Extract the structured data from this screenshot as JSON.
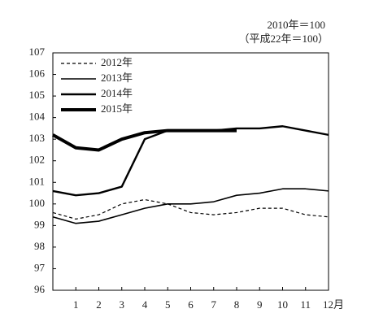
{
  "chart_data": {
    "type": "line",
    "annotations": [
      "2010年＝100",
      "（平成22年＝100）"
    ],
    "x": [
      0,
      1,
      2,
      3,
      4,
      5,
      6,
      7,
      8,
      9,
      10,
      11,
      12
    ],
    "xlim": [
      0,
      12
    ],
    "xticks": [
      1,
      2,
      3,
      4,
      5,
      6,
      7,
      8,
      9,
      10,
      11,
      {
        "value": 12,
        "label": "12月"
      }
    ],
    "ylim": [
      96,
      107
    ],
    "yticks": [
      96,
      97,
      98,
      99,
      100,
      101,
      102,
      103,
      104,
      105,
      106,
      107
    ],
    "legend": "top-left",
    "series": [
      {
        "name": "2012年",
        "color": "#000000",
        "dashed": true,
        "values": [
          99.6,
          99.3,
          99.5,
          100.0,
          100.2,
          100.0,
          99.6,
          99.5,
          99.6,
          99.8,
          99.8,
          99.5,
          99.4
        ]
      },
      {
        "name": "2013年",
        "color": "#000000",
        "values": [
          99.4,
          99.1,
          99.2,
          99.5,
          99.8,
          100.0,
          100.0,
          100.1,
          100.4,
          100.5,
          100.7,
          100.7,
          100.6
        ]
      },
      {
        "name": "2014年",
        "color": "#000000",
        "values": [
          100.6,
          100.4,
          100.5,
          100.8,
          103.0,
          103.4,
          103.4,
          103.4,
          103.5,
          103.5,
          103.6,
          103.4,
          103.2
        ]
      },
      {
        "name": "2015年",
        "color": "#000000",
        "values": [
          103.2,
          102.6,
          102.5,
          103.0,
          103.3,
          103.4,
          103.4,
          103.4,
          103.4,
          null,
          null,
          null,
          null
        ]
      }
    ]
  }
}
